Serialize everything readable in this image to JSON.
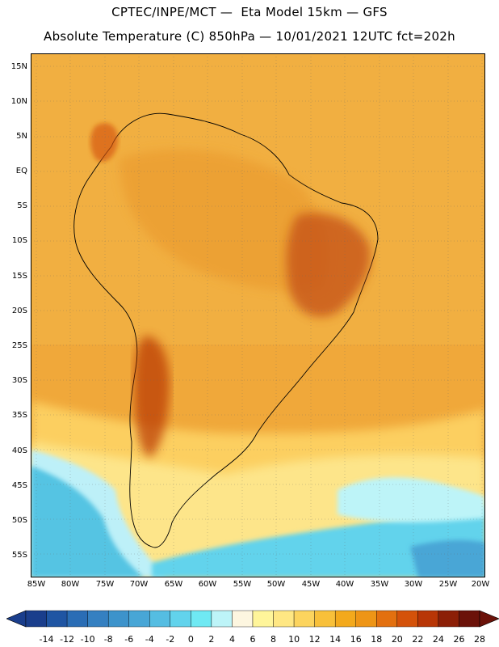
{
  "header": {
    "line1": "CPTEC/INPE/MCT —  Eta Model 15km — GFS",
    "line2": "Absolute Temperature (C) 850hPa — 10/01/2021 12UTC fct=202h"
  },
  "axes": {
    "lat_labels": [
      "15N",
      "10N",
      "5N",
      "EQ",
      "5S",
      "10S",
      "15S",
      "20S",
      "25S",
      "30S",
      "35S",
      "40S",
      "45S",
      "50S",
      "55S"
    ],
    "lon_labels": [
      "85W",
      "80W",
      "75W",
      "70W",
      "65W",
      "60W",
      "55W",
      "50W",
      "45W",
      "40W",
      "35W",
      "30W",
      "25W",
      "20W"
    ]
  },
  "colorbar": {
    "labels": [
      "-14",
      "-12",
      "-10",
      "-8",
      "-6",
      "-4",
      "-2",
      "0",
      "2",
      "4",
      "6",
      "8",
      "10",
      "12",
      "14",
      "16",
      "18",
      "20",
      "22",
      "24",
      "26",
      "28"
    ],
    "colors": [
      "#1a3e8c",
      "#1f55a3",
      "#2a6db5",
      "#3580c1",
      "#3d93cb",
      "#48a6d6",
      "#55bde2",
      "#62d3ec",
      "#6fe9f3",
      "#bdf4f8",
      "#fdf6e0",
      "#fff59a",
      "#ffe783",
      "#fcd45e",
      "#f8c03a",
      "#f3a91c",
      "#ee9516",
      "#e3700f",
      "#d4520a",
      "#b83606",
      "#8c1f07",
      "#6b1209"
    ]
  },
  "map": {
    "ocean_color": "#f0a83a",
    "land_color": "#e9962a",
    "hot_color": "#c44f14",
    "cold_color": "#5bd2ea"
  }
}
